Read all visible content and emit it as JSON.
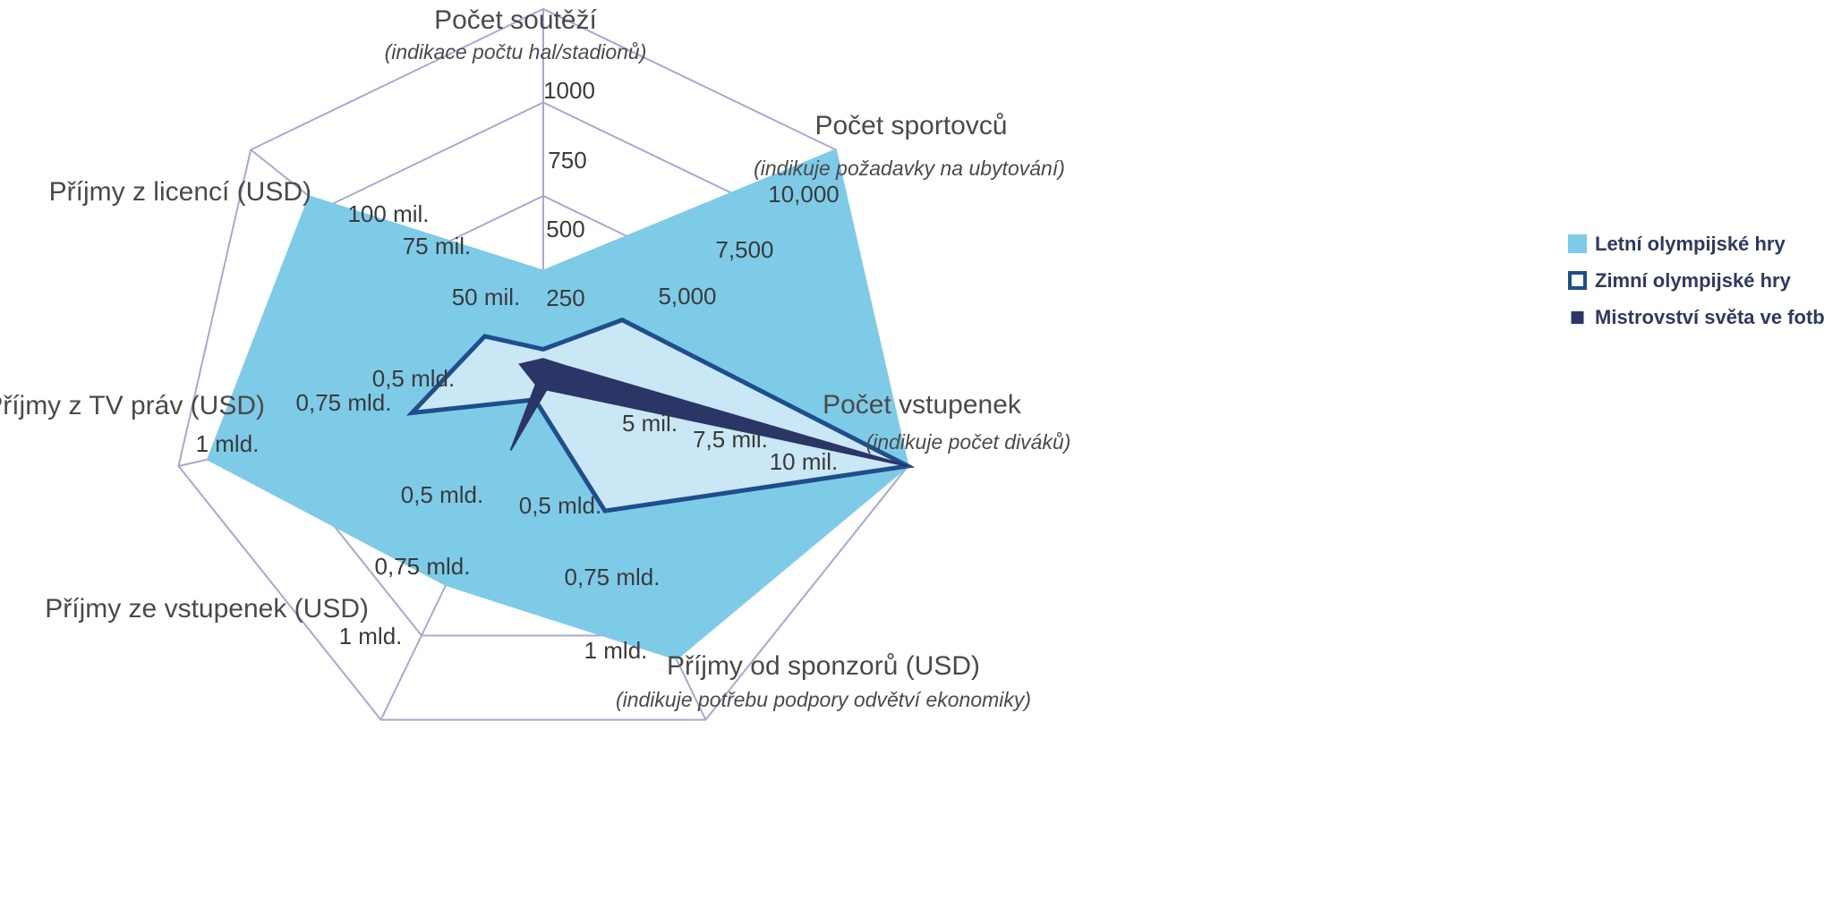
{
  "colors": {
    "grid": "#a8a8d0",
    "summer": "#7ecbe8",
    "winter_fill": "#d6ecf6",
    "winter_stroke": "#1f4e8c",
    "football": "#2b3566",
    "text": "#4a4a4a"
  },
  "chart_data": {
    "type": "radar",
    "grid_levels": 4,
    "axes": [
      {
        "label": "Počet soutěží",
        "sublabel": "(indikace počtu hal/stadionů)",
        "max": 1000,
        "ticks": [
          "250",
          "500",
          "750",
          "1000"
        ]
      },
      {
        "label": "Počet sportovců",
        "sublabel": "(indikuje požadavky na ubytování)",
        "max": 10000,
        "ticks": [
          "",
          "5,000",
          "7,500",
          "10,000"
        ]
      },
      {
        "label": "Počet vstupenek",
        "sublabel": "(indikuje počet diváků)",
        "max": 10,
        "ticks": [
          "",
          "5 mil.",
          "7,5 mil.",
          "10 mil."
        ]
      },
      {
        "label": "Příjmy od sponzorů (USD)",
        "sublabel": "(indikuje potřebu podpory odvětví ekonomiky)",
        "max": 1,
        "ticks": [
          "",
          "0,5 mld.",
          "0,75 mld.",
          "1 mld."
        ]
      },
      {
        "label": "Příjmy ze vstupenek (USD)",
        "sublabel": "",
        "max": 1,
        "ticks": [
          "",
          "0,5 mld.",
          "0,75 mld.",
          "1 mld."
        ]
      },
      {
        "label": "Příjmy z TV práv (USD)",
        "sublabel": "",
        "max": 1,
        "ticks": [
          "",
          "0,5 mld.",
          "0,75 mld.",
          "1 mld."
        ]
      },
      {
        "label": "Příjmy z licencí (USD)",
        "sublabel": "",
        "max": 100,
        "ticks": [
          "",
          "50 mil.",
          "75 mil.",
          "100 mil."
        ]
      }
    ],
    "series": [
      {
        "name": "Letní olympijské hry",
        "style": "filled",
        "values": [
          300,
          10000,
          9200,
          0.82,
          0.6,
          0.92,
          80
        ]
      },
      {
        "name": "Zimní olympijské hry",
        "style": "outline",
        "values": [
          90,
          2700,
          2200,
          0.38,
          0.05,
          0.36,
          20
        ]
      },
      {
        "name": "Mistrovství světa ve fotbale",
        "style": "dark",
        "values": [
          64,
          736,
          3400,
          0.02,
          0.2,
          0.02,
          8
        ]
      }
    ],
    "legend": "right"
  }
}
